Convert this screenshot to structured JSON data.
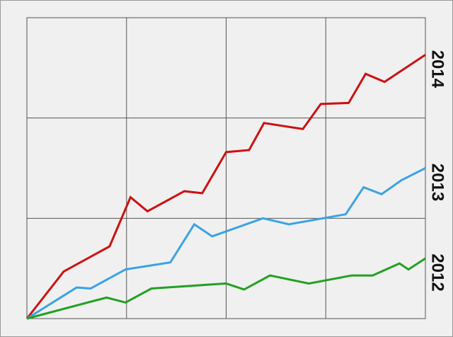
{
  "chart_data": {
    "type": "line",
    "xlim": [
      0,
      4
    ],
    "ylim": [
      0,
      3
    ],
    "xticks": [
      0,
      1,
      2,
      3,
      4
    ],
    "yticks": [
      0,
      1,
      2,
      3
    ],
    "grid": true,
    "series": [
      {
        "name": "2014",
        "color": "#cc1111",
        "x": [
          0,
          0.37,
          0.83,
          1.04,
          1.21,
          1.58,
          1.76,
          2.0,
          2.23,
          2.38,
          2.77,
          2.95,
          3.23,
          3.4,
          3.59,
          4.0
        ],
        "values": [
          0,
          0.47,
          0.72,
          1.21,
          1.07,
          1.27,
          1.25,
          1.66,
          1.68,
          1.95,
          1.89,
          2.14,
          2.15,
          2.44,
          2.36,
          2.63
        ]
      },
      {
        "name": "2013",
        "color": "#3aa3e3",
        "x": [
          0,
          0.5,
          0.64,
          0.99,
          1.44,
          1.68,
          1.86,
          2.37,
          2.63,
          3.2,
          3.38,
          3.56,
          3.76,
          4.0
        ],
        "values": [
          0,
          0.31,
          0.3,
          0.49,
          0.56,
          0.94,
          0.82,
          1.0,
          0.94,
          1.04,
          1.31,
          1.24,
          1.38,
          1.5
        ]
      },
      {
        "name": "2012",
        "color": "#22a022",
        "x": [
          0,
          0.8,
          0.99,
          1.25,
          2.0,
          2.18,
          2.44,
          2.83,
          3.26,
          3.47,
          3.74,
          3.83,
          4.0
        ],
        "values": [
          0,
          0.21,
          0.16,
          0.3,
          0.35,
          0.29,
          0.43,
          0.35,
          0.43,
          0.43,
          0.55,
          0.49,
          0.6
        ]
      }
    ]
  }
}
